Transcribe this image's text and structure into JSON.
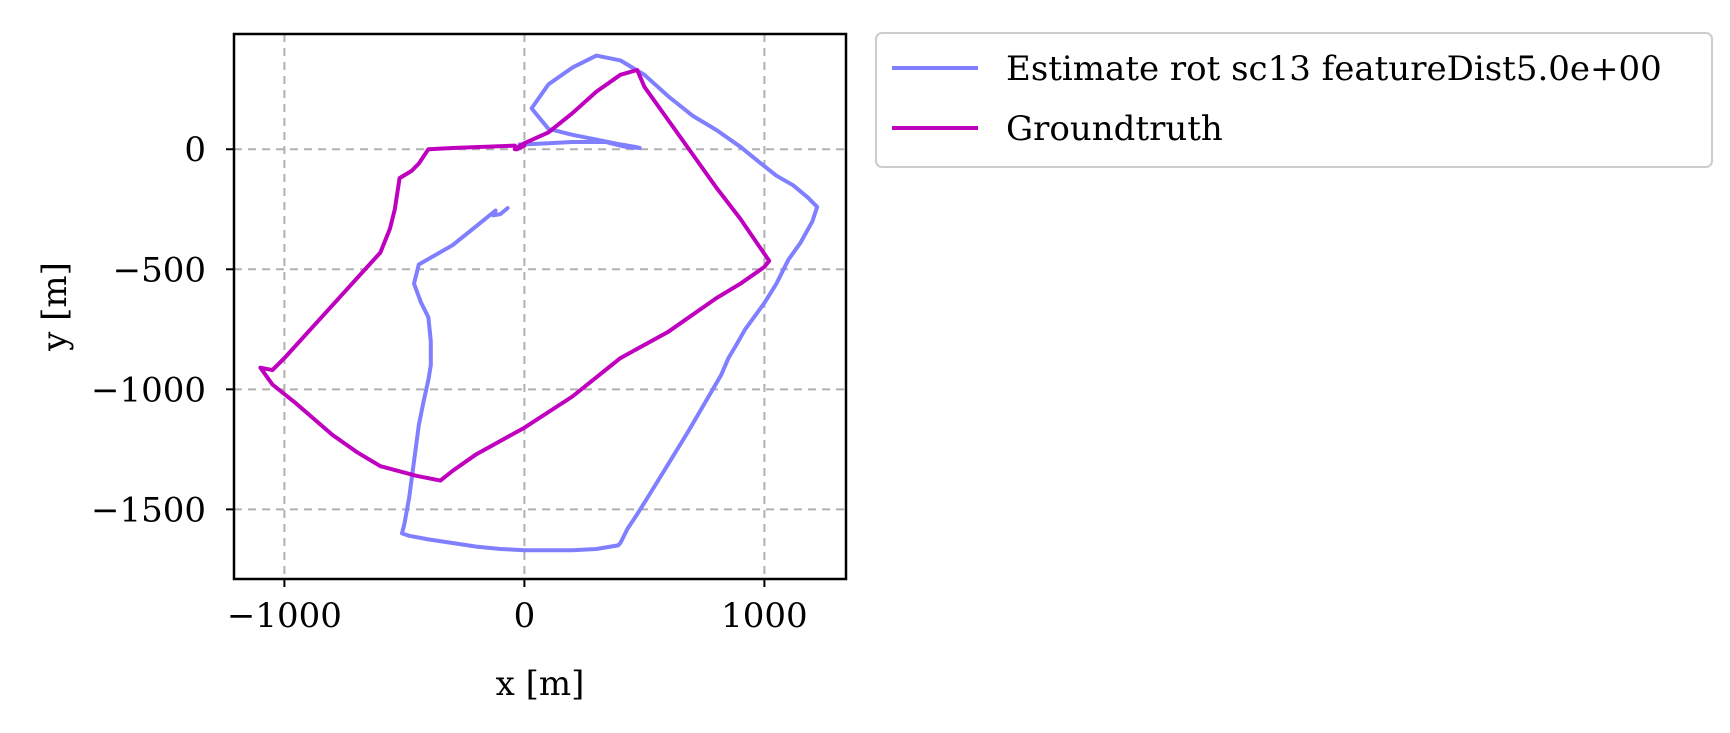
{
  "chart_data": {
    "type": "line",
    "title": "",
    "xlabel": "x [m]",
    "ylabel": "y [m]",
    "xlim": [
      -1210,
      1340
    ],
    "ylim": [
      -1790,
      480
    ],
    "xticks": [
      -1000,
      0,
      1000
    ],
    "yticks": [
      0,
      -500,
      -1000,
      -1500
    ],
    "xtick_labels": [
      "−1000",
      "0",
      "1000"
    ],
    "ytick_labels": [
      "0",
      "−500",
      "−1000",
      "−1500"
    ],
    "grid": true,
    "legend_position": "outside-top-right",
    "series": [
      {
        "name": "Estimate rot sc13 featureDist5.0e+00",
        "color": "#7f7fff",
        "x": [
          -70,
          -100,
          -130,
          -120,
          -200,
          -300,
          -440,
          -450,
          -460,
          -445,
          -430,
          -400,
          -390,
          -390,
          -400,
          -420,
          -440,
          -460,
          -480,
          -500,
          -510,
          -480,
          -400,
          -300,
          -200,
          -100,
          0,
          100,
          200,
          300,
          390,
          400,
          430,
          470,
          520,
          600,
          680,
          750,
          820,
          850,
          880,
          920,
          1000,
          1050,
          1100,
          1150,
          1200,
          1220,
          1180,
          1120,
          1050,
          980,
          900,
          800,
          700,
          650,
          600,
          500,
          400,
          300,
          200,
          100,
          30,
          100,
          200,
          300,
          400,
          460,
          480,
          420,
          340,
          260,
          200,
          100,
          0,
          -20
        ],
        "y": [
          -245,
          -270,
          -275,
          -255,
          -320,
          -400,
          -480,
          -520,
          -560,
          -600,
          -640,
          -700,
          -800,
          -900,
          -960,
          -1050,
          -1150,
          -1300,
          -1450,
          -1560,
          -1600,
          -1610,
          -1625,
          -1640,
          -1655,
          -1665,
          -1670,
          -1670,
          -1670,
          -1665,
          -1650,
          -1640,
          -1580,
          -1520,
          -1440,
          -1310,
          -1180,
          -1060,
          -940,
          -870,
          -820,
          -750,
          -640,
          -560,
          -460,
          -390,
          -300,
          -240,
          -200,
          -150,
          -110,
          -55,
          10,
          80,
          140,
          180,
          220,
          310,
          370,
          390,
          340,
          270,
          170,
          85,
          60,
          40,
          20,
          10,
          5,
          10,
          30,
          30,
          30,
          25,
          20,
          20
        ]
      },
      {
        "name": "Groundtruth",
        "color": "#bf00bf",
        "x": [
          -40,
          -300,
          -400,
          -420,
          -440,
          -470,
          -520,
          -540,
          -560,
          -600,
          -700,
          -800,
          -900,
          -1000,
          -1050,
          -1100,
          -1050,
          -950,
          -800,
          -700,
          -600,
          -450,
          -350,
          -300,
          -200,
          0,
          200,
          400,
          600,
          800,
          900,
          1000,
          1020,
          900,
          800,
          700,
          600,
          500,
          470,
          400,
          300,
          200,
          100,
          0,
          -40,
          -30,
          0
        ],
        "y": [
          15,
          5,
          0,
          -30,
          -60,
          -90,
          -120,
          -250,
          -330,
          -430,
          -540,
          -650,
          -760,
          -870,
          -920,
          -910,
          -980,
          -1060,
          -1190,
          -1260,
          -1320,
          -1360,
          -1380,
          -1340,
          -1270,
          -1160,
          -1030,
          -870,
          -760,
          -620,
          -560,
          -490,
          -465,
          -290,
          -160,
          -20,
          120,
          260,
          330,
          310,
          240,
          150,
          70,
          25,
          0,
          0,
          15
        ]
      }
    ]
  }
}
